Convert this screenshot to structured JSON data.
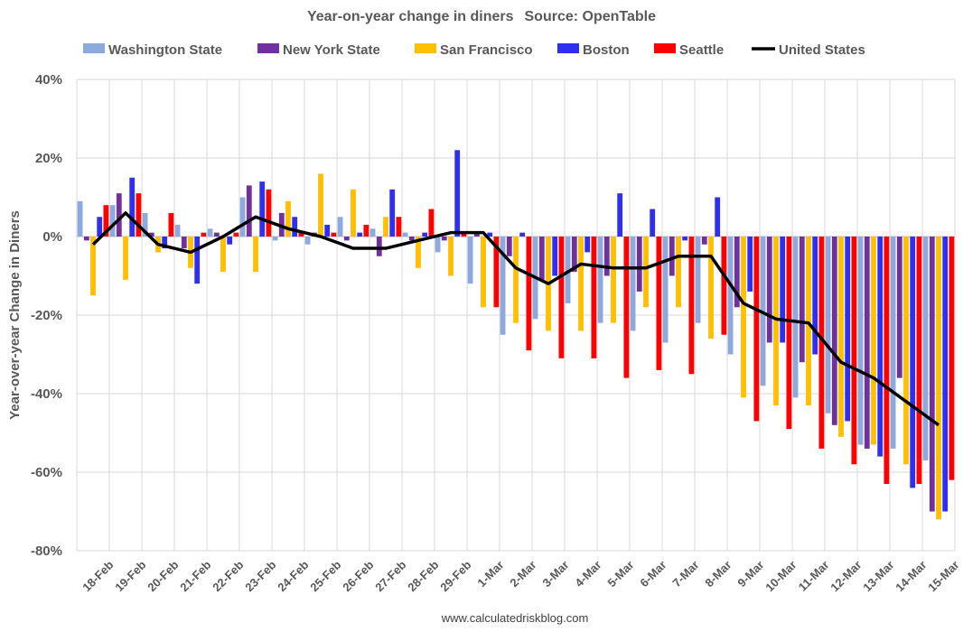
{
  "chart_data": {
    "type": "bar",
    "title": "Year-on-year change in diners",
    "source": "Source: OpenTable",
    "ylabel": "Year-over-year Change in Diners",
    "xlabel": "",
    "ylim": [
      -80,
      40
    ],
    "yticks": [
      40,
      20,
      0,
      -20,
      -40,
      -60,
      -80
    ],
    "ytick_labels": [
      "40%",
      "20%",
      "0%",
      "-20%",
      "-40%",
      "-60%",
      "-80%"
    ],
    "grid": true,
    "legend_position": "top",
    "categories": [
      "18-Feb",
      "19-Feb",
      "20-Feb",
      "21-Feb",
      "22-Feb",
      "23-Feb",
      "24-Feb",
      "25-Feb",
      "26-Feb",
      "27-Feb",
      "28-Feb",
      "29-Feb",
      "1-Mar",
      "2-Mar",
      "3-Mar",
      "4-Mar",
      "5-Mar",
      "6-Mar",
      "7-Mar",
      "8-Mar",
      "9-Mar",
      "10-Mar",
      "11-Mar",
      "12-Mar",
      "13-Mar",
      "14-Mar",
      "15-Mar"
    ],
    "series": [
      {
        "name": "Washington State",
        "color": "#8EA9DB",
        "type": "bar",
        "values": [
          9,
          8,
          6,
          3,
          2,
          10,
          -1,
          -2,
          5,
          2,
          1,
          -4,
          -12,
          -25,
          -21,
          -17,
          -22,
          -24,
          -27,
          -22,
          -30,
          -38,
          -41,
          -45,
          -53,
          -54,
          -57
        ]
      },
      {
        "name": "New York State",
        "color": "#7030A0",
        "type": "bar",
        "values": [
          -1,
          11,
          1,
          -3,
          1,
          13,
          6,
          1,
          -1,
          -5,
          -1,
          -1,
          1,
          -5,
          -11,
          -9,
          -10,
          -14,
          -10,
          -2,
          -18,
          -27,
          -32,
          -48,
          -54,
          -36,
          -70
        ]
      },
      {
        "name": "San Francisco",
        "color": "#FFC000",
        "type": "bar",
        "values": [
          -15,
          -11,
          -4,
          -8,
          -9,
          -9,
          9,
          16,
          12,
          5,
          -8,
          -10,
          -18,
          -22,
          -24,
          -24,
          -22,
          -18,
          -18,
          -26,
          -41,
          -43,
          -43,
          -51,
          -53,
          -58,
          -72
        ]
      },
      {
        "name": "Boston",
        "color": "#2E2EF5",
        "type": "bar",
        "values": [
          5,
          15,
          -3,
          -12,
          -2,
          14,
          5,
          3,
          1,
          12,
          1,
          22,
          1,
          1,
          -10,
          -4,
          11,
          7,
          -1,
          10,
          -14,
          -27,
          -30,
          -47,
          -56,
          -64,
          -70
        ]
      },
      {
        "name": "Seattle",
        "color": "#FF0000",
        "type": "bar",
        "values": [
          8,
          11,
          6,
          1,
          1,
          12,
          1,
          1,
          3,
          5,
          7,
          1,
          -18,
          -29,
          -31,
          -31,
          -36,
          -34,
          -35,
          -25,
          -47,
          -49,
          -54,
          -58,
          -63,
          -63,
          -62
        ]
      },
      {
        "name": "United States",
        "color": "#000000",
        "type": "line",
        "values": [
          -2,
          6,
          -2,
          -4,
          0,
          5,
          2,
          0,
          -3,
          -3,
          -1,
          1,
          1,
          -8,
          -12,
          -7,
          -8,
          -8,
          -5,
          -5,
          -17,
          -21,
          -22,
          -32,
          -36,
          -42,
          -48
        ]
      }
    ]
  },
  "footer": "www.calculatedriskblog.com"
}
